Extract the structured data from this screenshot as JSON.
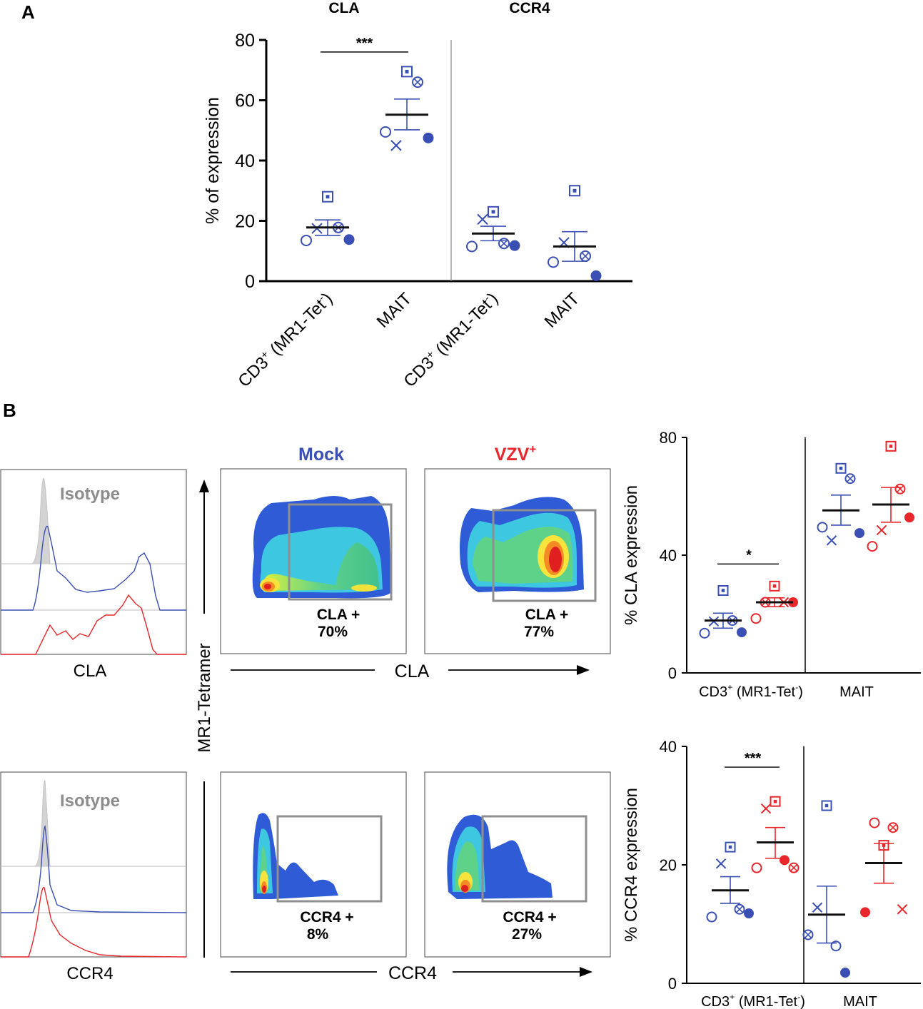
{
  "colors": {
    "mock": "#3a4fb3",
    "vzv": "#e8262b",
    "black": "#111111",
    "gray": "#8c8c8c",
    "gate": "#8f8f8f"
  },
  "panel_a": {
    "label": "A"
  },
  "panel_b": {
    "label": "B"
  },
  "flow": {
    "mock_title": "Mock",
    "vzv_title": "VZV",
    "vzv_sup": "+",
    "isotype": "Isotype",
    "y_axis": "MR1-Tetramer",
    "cla_axis": "CLA",
    "ccr4_axis": "CCR4",
    "hist_cla_label": "CLA",
    "hist_ccr4_label": "CCR4",
    "gates": {
      "cla_mock": {
        "name": "CLA +",
        "pct": "70%"
      },
      "cla_vzv": {
        "name": "CLA +",
        "pct": "77%"
      },
      "ccr4_mock": {
        "name": "CCR4 +",
        "pct": "8%"
      },
      "ccr4_vzv": {
        "name": "CCR4 +",
        "pct": "27%"
      }
    }
  },
  "chart_data": [
    {
      "id": "A",
      "type": "scatter",
      "subtitles": [
        "CLA",
        "CCR4"
      ],
      "ylabel": "% of expression",
      "ylim": [
        0,
        80
      ],
      "yticks": [
        "0",
        "20",
        "40",
        "60",
        "80"
      ],
      "categories": [
        {
          "base": "CD3",
          "sup": "+",
          "rest": " (MR1-Tet",
          "sup2": "-",
          "end": ")"
        },
        {
          "base": "MAIT",
          "sup": "",
          "rest": "",
          "sup2": "",
          "end": ""
        },
        {
          "base": "CD3",
          "sup": "+",
          "rest": " (MR1-Tet",
          "sup2": "-",
          "end": ")"
        },
        {
          "base": "MAIT",
          "sup": "",
          "rest": "",
          "sup2": "",
          "end": ""
        }
      ],
      "groups": [
        {
          "category": 0,
          "color": "mock",
          "mean": 17.8,
          "sem": [
            15.2,
            20.3
          ],
          "points": [
            {
              "m": "circle",
              "v": 13.5
            },
            {
              "m": "x",
              "v": 17.5
            },
            {
              "m": "boxdot",
              "v": 28
            },
            {
              "m": "otimes",
              "v": 17.8
            },
            {
              "m": "dot",
              "v": 13.8
            }
          ]
        },
        {
          "category": 1,
          "color": "mock",
          "mean": 55.2,
          "sem": [
            50.2,
            60.4
          ],
          "points": [
            {
              "m": "circle",
              "v": 49.5
            },
            {
              "m": "x",
              "v": 45
            },
            {
              "m": "boxdot",
              "v": 69.5
            },
            {
              "m": "otimes",
              "v": 66
            },
            {
              "m": "dot",
              "v": 47.5
            }
          ]
        },
        {
          "category": 2,
          "color": "mock",
          "mean": 15.8,
          "sem": [
            13.4,
            18.2
          ],
          "points": [
            {
              "m": "circle",
              "v": 11.5
            },
            {
              "m": "x",
              "v": 20.5
            },
            {
              "m": "boxdot",
              "v": 23
            },
            {
              "m": "otimes",
              "v": 12.5
            },
            {
              "m": "dot",
              "v": 11.8
            }
          ]
        },
        {
          "category": 3,
          "color": "mock",
          "mean": 11.5,
          "sem": [
            6.6,
            16.4
          ],
          "points": [
            {
              "m": "circle",
              "v": 6.3
            },
            {
              "m": "x",
              "v": 12.8
            },
            {
              "m": "boxdot",
              "v": 30
            },
            {
              "m": "otimes",
              "v": 8.3
            },
            {
              "m": "dot",
              "v": 1.8
            }
          ]
        }
      ],
      "significance": [
        {
          "label": "***",
          "from": 0,
          "to": 1,
          "y": 76
        }
      ]
    },
    {
      "id": "B-CLA",
      "type": "scatter",
      "ylabel": "% CLA expression",
      "ylim": [
        0,
        80
      ],
      "yticks": [
        "0",
        "40",
        "80"
      ],
      "group_labels": [
        {
          "base": "CD3",
          "sup": "+",
          "rest": " (MR1-Tet",
          "sup2": "-",
          "end": ")"
        },
        {
          "base": "MAIT",
          "sup": "",
          "rest": "",
          "sup2": "",
          "end": ""
        }
      ],
      "series": [
        {
          "name": "Mock",
          "color": "mock",
          "mean": 17.8,
          "sem": [
            15.2,
            20.3
          ],
          "points": [
            {
              "m": "circle",
              "v": 13.5
            },
            {
              "m": "x",
              "v": 17.5
            },
            {
              "m": "boxdot",
              "v": 28
            },
            {
              "m": "otimes",
              "v": 17.8
            },
            {
              "m": "dot",
              "v": 13.8
            }
          ]
        },
        {
          "name": "VZV",
          "color": "vzv",
          "mean": 24,
          "sem": [
            22.5,
            25.5
          ],
          "points": [
            {
              "m": "circle",
              "v": 18.5
            },
            {
              "m": "otimes",
              "v": 24
            },
            {
              "m": "boxdot",
              "v": 29.5
            },
            {
              "m": "x",
              "v": 24
            },
            {
              "m": "dot",
              "v": 24
            }
          ]
        },
        {
          "name": "Mock",
          "color": "mock",
          "mean": 55.2,
          "sem": [
            50.2,
            60.4
          ],
          "points": [
            {
              "m": "circle",
              "v": 49.5
            },
            {
              "m": "x",
              "v": 45
            },
            {
              "m": "boxdot",
              "v": 69.5
            },
            {
              "m": "otimes",
              "v": 66
            },
            {
              "m": "dot",
              "v": 47.5
            }
          ]
        },
        {
          "name": "VZV",
          "color": "vzv",
          "mean": 57.2,
          "sem": [
            51.2,
            63
          ],
          "points": [
            {
              "m": "circle",
              "v": 43
            },
            {
              "m": "x",
              "v": 48.5
            },
            {
              "m": "boxdot",
              "v": 77
            },
            {
              "m": "otimes",
              "v": 62.5
            },
            {
              "m": "dot",
              "v": 52.8
            }
          ]
        }
      ],
      "significance": [
        {
          "label": "*",
          "from": 0,
          "to": 1,
          "y": 37
        }
      ]
    },
    {
      "id": "B-CCR4",
      "type": "scatter",
      "ylabel": "% CCR4 expression",
      "ylim": [
        0,
        40
      ],
      "yticks": [
        "0",
        "20",
        "40"
      ],
      "group_labels": [
        {
          "base": "CD3",
          "sup": "+",
          "rest": " (MR1-Tet",
          "sup2": "-",
          "end": ")"
        },
        {
          "base": "MAIT",
          "sup": "",
          "rest": "",
          "sup2": "",
          "end": ""
        }
      ],
      "series": [
        {
          "name": "Mock",
          "color": "mock",
          "mean": 15.7,
          "sem": [
            13.5,
            18
          ],
          "points": [
            {
              "m": "circle",
              "v": 11.2
            },
            {
              "m": "x",
              "v": 20.2
            },
            {
              "m": "boxdot",
              "v": 23
            },
            {
              "m": "otimes",
              "v": 12.5
            },
            {
              "m": "dot",
              "v": 11.8
            }
          ]
        },
        {
          "name": "VZV",
          "color": "vzv",
          "mean": 23.8,
          "sem": [
            21.1,
            26.3
          ],
          "points": [
            {
              "m": "circle",
              "v": 19.5
            },
            {
              "m": "x",
              "v": 29.5
            },
            {
              "m": "boxdot",
              "v": 30.7
            },
            {
              "m": "dot",
              "v": 20.8
            },
            {
              "m": "otimes",
              "v": 19.5
            }
          ]
        },
        {
          "name": "Mock",
          "color": "mock",
          "mean": 11.6,
          "sem": [
            6.8,
            16.4
          ],
          "points": [
            {
              "m": "otimes",
              "v": 8.2
            },
            {
              "m": "x",
              "v": 12.8
            },
            {
              "m": "boxdot",
              "v": 30
            },
            {
              "m": "circle",
              "v": 6.3
            },
            {
              "m": "dot",
              "v": 1.8
            }
          ]
        },
        {
          "name": "VZV",
          "color": "vzv",
          "mean": 20.3,
          "sem": [
            16.9,
            23.6
          ],
          "points": [
            {
              "m": "dot",
              "v": 12
            },
            {
              "m": "circle",
              "v": 27.1
            },
            {
              "m": "boxdot",
              "v": 23.3
            },
            {
              "m": "otimes",
              "v": 26.3
            },
            {
              "m": "x",
              "v": 12.5
            }
          ]
        }
      ],
      "significance": [
        {
          "label": "***",
          "from": 0,
          "to": 1,
          "y": 36.5
        }
      ]
    }
  ]
}
